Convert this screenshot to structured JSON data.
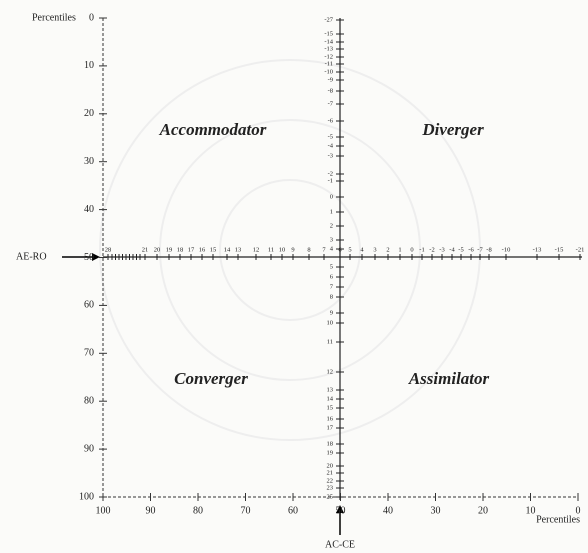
{
  "axes": {
    "left_title": "Percentiles",
    "bottom_title": "Percentiles",
    "left_ticks": [
      "0",
      "10",
      "20",
      "30",
      "40",
      "50",
      "60",
      "70",
      "80",
      "90",
      "100"
    ],
    "bottom_ticks": [
      "100",
      "90",
      "80",
      "70",
      "60",
      "50",
      "40",
      "30",
      "20",
      "10",
      "0"
    ]
  },
  "scales": {
    "ae_ro": {
      "label": "AE-RO",
      "ticks": [
        "28",
        "21",
        "20",
        "19",
        "18",
        "17",
        "16",
        "15",
        "14",
        "13",
        "12",
        "11",
        "10",
        "9",
        "8",
        "7",
        "6",
        "5",
        "4",
        "3",
        "2",
        "1",
        "0",
        "-1",
        "-2",
        "-3",
        "-4",
        "-5",
        "-6",
        "-7",
        "-8",
        "-10",
        "-13",
        "-15",
        "-21"
      ]
    },
    "ac_ce": {
      "label": "AC-CE",
      "ticks": [
        "-27",
        "-15",
        "-14",
        "-13",
        "-12",
        "-11",
        "-10",
        "-9",
        "-8",
        "-7",
        "-6",
        "-5",
        "-4",
        "-3",
        "-2",
        "-1",
        "0",
        "1",
        "2",
        "3",
        "4",
        "5",
        "6",
        "7",
        "8",
        "9",
        "10",
        "11",
        "12",
        "13",
        "14",
        "15",
        "16",
        "17",
        "18",
        "19",
        "20",
        "21",
        "22",
        "23",
        "25"
      ]
    }
  },
  "quadrants": [
    "Accommodator",
    "Diverger",
    "Converger",
    "Assimilator"
  ]
}
